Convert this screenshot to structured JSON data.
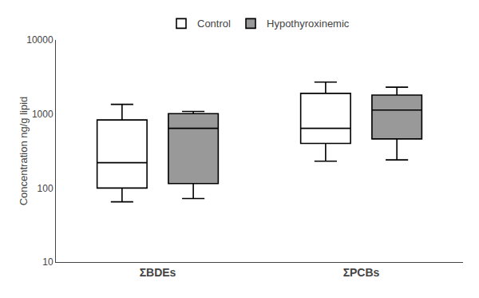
{
  "chart_data": {
    "type": "box",
    "categories": [
      "ΣBDEs",
      "ΣPCBs"
    ],
    "ylabel": "Concentration ng/g lipid",
    "log": "y",
    "ylim": [
      10,
      10000
    ],
    "yticks": [
      10,
      100,
      1000,
      10000
    ],
    "grid": false,
    "legend": "top",
    "color": "#000000",
    "series": [
      {
        "name": "Control",
        "color": "#ffffff",
        "whislo": [
          65,
          230
        ],
        "q1": [
          100,
          400
        ],
        "med": [
          220,
          640
        ],
        "q3": [
          830,
          1900
        ],
        "whishi": [
          1350,
          2700
        ]
      },
      {
        "name": "Hypothyroxinemic",
        "color": "#999999",
        "whislo": [
          72,
          240
        ],
        "q1": [
          115,
          460
        ],
        "med": [
          640,
          1130
        ],
        "q3": [
          1010,
          1800
        ],
        "whishi": [
          1080,
          2300
        ]
      }
    ]
  }
}
